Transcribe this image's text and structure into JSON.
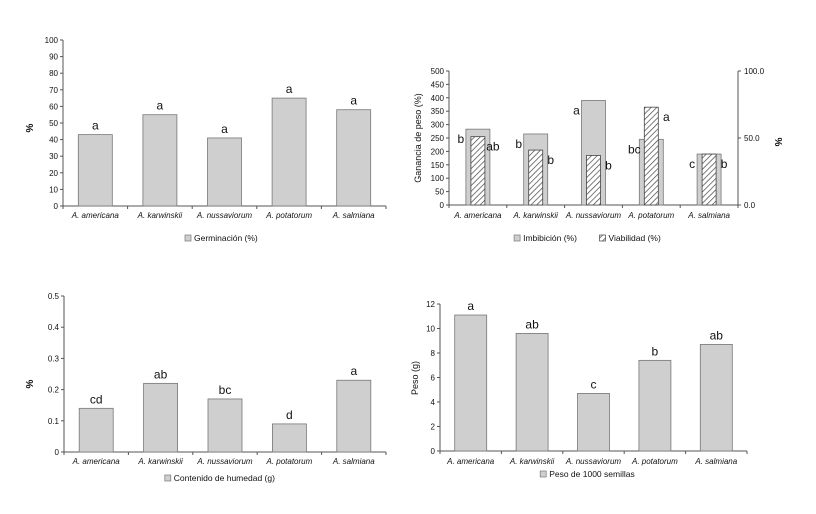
{
  "chart_data": [
    {
      "type": "bar",
      "categories": [
        "A. americana",
        "A. karwinskii",
        "A. nussaviorum",
        "A. potatorum",
        "A. salmiana"
      ],
      "ylabel": "%",
      "ylim": [
        0,
        100
      ],
      "yticks": [
        "0",
        "10",
        "20",
        "30",
        "40",
        "50",
        "60",
        "70",
        "80",
        "90",
        "100"
      ],
      "series": [
        {
          "name": "Germinación (%)",
          "values": [
            43,
            55,
            41,
            65,
            58
          ],
          "letters": [
            "a",
            "a",
            "a",
            "a",
            "a"
          ],
          "color": "#cfcfcf"
        }
      ],
      "legend_position": "bottom"
    },
    {
      "type": "bar",
      "categories": [
        "A. americana",
        "A. karwinskii",
        "A. nussaviorum",
        "A. potatorum",
        "A. salmiana"
      ],
      "ylabel": "Ganancia de peso (%)",
      "ylim": [
        0,
        500
      ],
      "yticks": [
        "0",
        "50",
        "100",
        "150",
        "200",
        "250",
        "300",
        "350",
        "400",
        "450",
        "500"
      ],
      "y2label": "%",
      "y2lim": [
        0,
        100
      ],
      "y2ticks": [
        "0.0",
        "50.0",
        "100.0"
      ],
      "series": [
        {
          "name": "Imbibición (%)",
          "axis": "left",
          "values": [
            283,
            265,
            390,
            245,
            190
          ],
          "letters": [
            "b",
            "b",
            "a",
            "bc",
            "c"
          ],
          "color": "#cfcfcf"
        },
        {
          "name": "Viabilidad (%)",
          "axis": "right",
          "values": [
            51,
            41,
            37,
            73,
            38
          ],
          "letters": [
            "ab",
            "b",
            "b",
            "a",
            "b"
          ],
          "pattern": "hatch"
        }
      ],
      "legend_position": "bottom"
    },
    {
      "type": "bar",
      "categories": [
        "A. americana",
        "A. karwinskii",
        "A. nussaviorum",
        "A. potatorum",
        "A. salmiana"
      ],
      "ylabel": "%",
      "ylim": [
        0,
        0.5
      ],
      "yticks": [
        "0",
        "0.1",
        "0.2",
        "0.3",
        "0.4",
        "0.5"
      ],
      "series": [
        {
          "name": "Contenido de humedad (g)",
          "values": [
            0.14,
            0.22,
            0.17,
            0.09,
            0.23
          ],
          "letters": [
            "cd",
            "ab",
            "bc",
            "d",
            "a"
          ],
          "color": "#cfcfcf"
        }
      ],
      "legend_position": "bottom"
    },
    {
      "type": "bar",
      "categories": [
        "A. americana",
        "A. karwinskii",
        "A. nussaviorum",
        "A. potatorum",
        "A. salmiana"
      ],
      "ylabel": "Peso (g)",
      "ylim": [
        0,
        12
      ],
      "yticks": [
        "0",
        "2",
        "4",
        "6",
        "8",
        "10",
        "12"
      ],
      "series": [
        {
          "name": "Peso de 1000 semillas",
          "values": [
            11.1,
            9.6,
            4.7,
            7.4,
            8.7
          ],
          "letters": [
            "a",
            "ab",
            "c",
            "b",
            "ab"
          ],
          "color": "#cfcfcf"
        }
      ],
      "legend_position": "bottom"
    }
  ]
}
